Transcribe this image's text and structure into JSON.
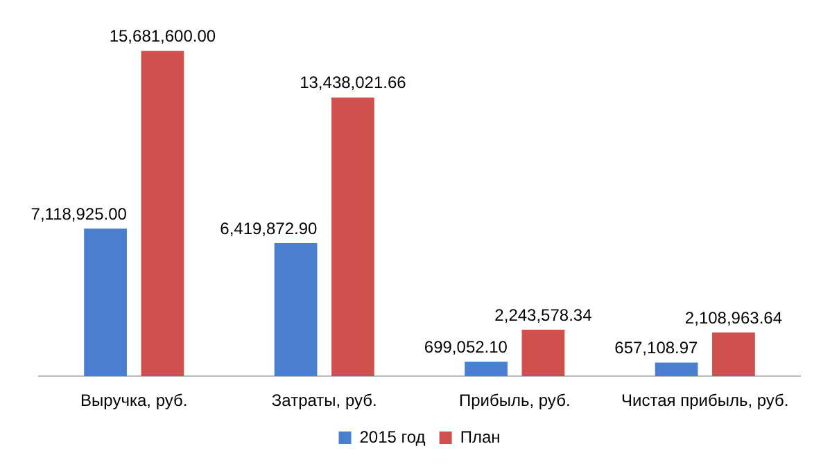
{
  "chart_data": {
    "type": "bar",
    "categories": [
      "Выручка, руб.",
      "Затраты, руб.",
      "Прибыль, руб.",
      "Чистая прибыль, руб."
    ],
    "series": [
      {
        "name": "2015 год",
        "color": "#4a7fcf",
        "values": [
          7118925.0,
          6419872.9,
          699052.1,
          657108.97
        ],
        "value_labels": [
          "7,118,925.00",
          "6,419,872.90",
          "699,052.10",
          "657,108.97"
        ]
      },
      {
        "name": "План",
        "color": "#d0504e",
        "values": [
          15681600.0,
          13438021.66,
          2243578.34,
          2108963.64
        ],
        "value_labels": [
          "15,681,600.00",
          "13,438,021.66",
          "2,243,578.34",
          "2,108,963.64"
        ]
      }
    ],
    "legend": "bottom",
    "grid": false,
    "tick_labels": "x"
  }
}
